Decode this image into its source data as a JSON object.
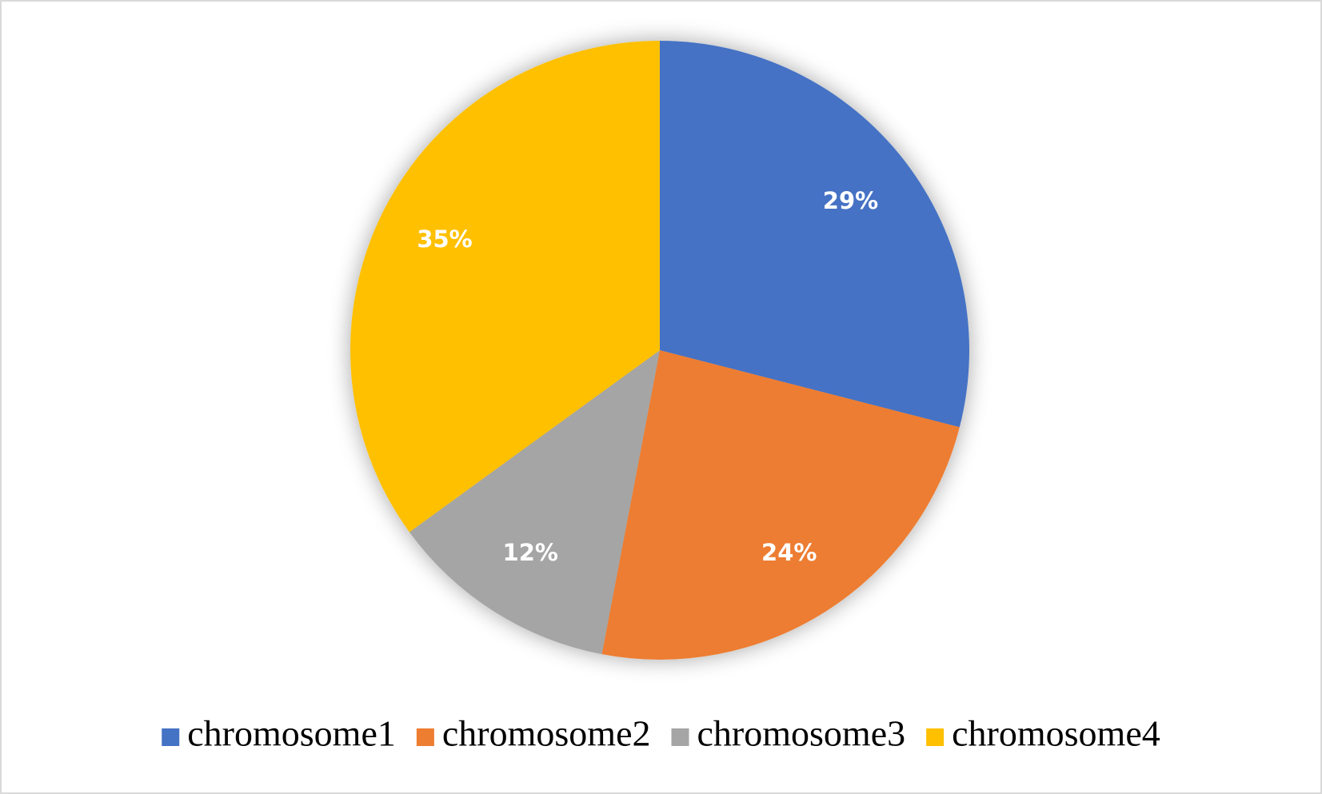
{
  "chart_data": {
    "type": "pie",
    "categories": [
      "chromosome1",
      "chromosome2",
      "chromosome3",
      "chromosome4"
    ],
    "values": [
      29,
      24,
      12,
      35
    ],
    "value_labels": [
      "29%",
      "24%",
      "12%",
      "35%"
    ],
    "colors": [
      "#4472c4",
      "#ed7d31",
      "#a5a5a5",
      "#ffc000"
    ],
    "legend": "bottom"
  }
}
